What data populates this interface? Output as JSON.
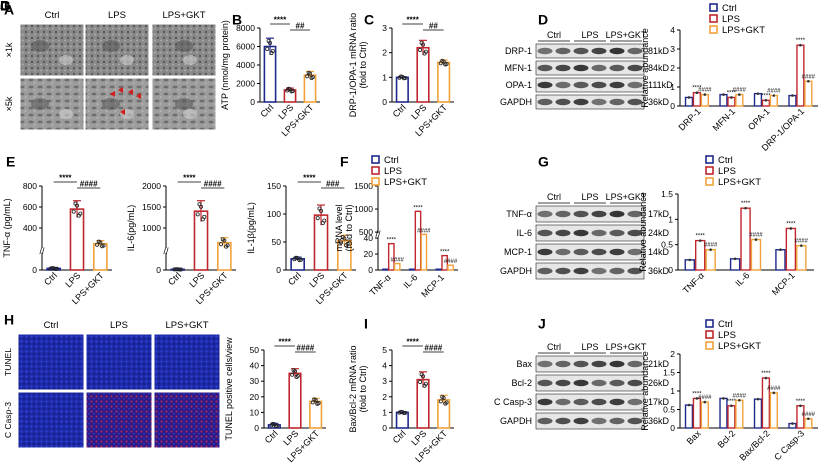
{
  "legend_labels": [
    "Ctrl",
    "LPS",
    "LPS+GKT"
  ],
  "colors": {
    "ctrl": "#1f2a8c",
    "lps": "#c0272d",
    "gkt": "#f2a23a"
  },
  "panels": {
    "A": {
      "letter": "A",
      "col_labels": [
        "Ctrl",
        "LPS",
        "LPS+GKT"
      ],
      "row_labels": [
        "×1k",
        "×5k"
      ]
    },
    "H": {
      "letter": "H",
      "col_labels": [
        "Ctrl",
        "LPS",
        "LPS+GKT"
      ],
      "row_labels": [
        "TUNEL",
        "C Casp-3"
      ]
    },
    "blots": [
      {
        "id": "blot-D",
        "letter": "D",
        "col_labels": [
          "Ctrl",
          "LPS",
          "LPS+GKT"
        ],
        "bands": [
          {
            "name": "DRP-1",
            "kd": "81kD"
          },
          {
            "name": "MFN-1",
            "kd": "84kD"
          },
          {
            "name": "OPA-1",
            "kd": "111kD"
          },
          {
            "name": "GAPDH",
            "kd": "36kD"
          }
        ]
      },
      {
        "id": "blot-G",
        "letter": "G",
        "col_labels": [
          "Ctrl",
          "LPS",
          "LPS+GKT"
        ],
        "bands": [
          {
            "name": "TNF-α",
            "kd": "17kD"
          },
          {
            "name": "IL-6",
            "kd": "24kD"
          },
          {
            "name": "MCP-1",
            "kd": "14kD"
          },
          {
            "name": "GAPDH",
            "kd": "36kD"
          }
        ]
      },
      {
        "id": "blot-J",
        "letter": "J",
        "col_labels": [
          "Ctrl",
          "LPS",
          "LPS+GKT"
        ],
        "bands": [
          {
            "name": "Bax",
            "kd": "21kD"
          },
          {
            "name": "Bcl-2",
            "kd": "26kD"
          },
          {
            "name": "C Casp-3",
            "kd": "17kD"
          },
          {
            "name": "GAPDH",
            "kd": "36kD"
          }
        ]
      }
    ]
  },
  "chart_data": [
    {
      "id": "B",
      "letter": "B",
      "type": "bar",
      "categories": [
        "Ctrl",
        "LPS",
        "LPS+GKT"
      ],
      "values": [
        6000,
        1300,
        2900
      ],
      "errors": [
        900,
        200,
        400
      ],
      "ylabel": "ATP (nmol/mg protein)",
      "ylim": [
        0,
        8000
      ],
      "yticks": [
        0,
        2000,
        4000,
        6000,
        8000
      ],
      "sig": [
        {
          "text": "****",
          "from": 0,
          "to": 1
        },
        {
          "text": "##",
          "from": 1,
          "to": 2
        }
      ]
    },
    {
      "id": "C",
      "letter": "C",
      "type": "bar",
      "categories": [
        "Ctrl",
        "LPS",
        "LPS+GKT"
      ],
      "values": [
        1.0,
        2.2,
        1.6
      ],
      "errors": [
        0,
        0.3,
        0.1
      ],
      "ylabel": "DRP-1/OPA-1 mRNA ratio",
      "ylabel2": "(fold to Ctrl)",
      "ylim": [
        0,
        3
      ],
      "yticks": [
        0,
        1,
        2,
        3
      ],
      "sig": [
        {
          "text": "****",
          "from": 0,
          "to": 1
        },
        {
          "text": "##",
          "from": 1,
          "to": 2
        }
      ]
    },
    {
      "id": "D",
      "letter": "D",
      "type": "bar",
      "categories": [
        "DRP-1",
        "MFN-1",
        "OPA-1",
        "DRP-1/OPA-1"
      ],
      "series": [
        {
          "name": "Ctrl",
          "values": [
            0.45,
            0.6,
            0.65,
            0.55
          ]
        },
        {
          "name": "LPS",
          "values": [
            0.7,
            0.45,
            0.3,
            3.2
          ]
        },
        {
          "name": "LPS+GKT",
          "values": [
            0.6,
            0.6,
            0.55,
            1.3
          ]
        }
      ],
      "ylabel": "Relative abundance",
      "ylim": [
        0,
        4
      ],
      "yticks": [
        0,
        1,
        2,
        3,
        4
      ],
      "legend": "top-right",
      "stars": [
        [
          "",
          "****",
          "####"
        ],
        [
          "",
          "****",
          "####"
        ],
        [
          "",
          "****",
          "####"
        ],
        [
          "",
          "****",
          "####"
        ]
      ]
    },
    {
      "id": "E1",
      "letter": "E",
      "type": "bar",
      "categories": [
        "Ctrl",
        "LPS",
        "LPS+GKT"
      ],
      "values": [
        15,
        580,
        250
      ],
      "errors": [
        5,
        80,
        30
      ],
      "ylabel": "TNF-α (pg/mL)",
      "ylim": [
        0,
        800
      ],
      "yticks": [
        0,
        200,
        400,
        600,
        800
      ],
      "tick_labels": [
        "",
        "",
        "400",
        "600",
        "800"
      ],
      "broken_axis": true,
      "sig": [
        {
          "text": "****",
          "from": 0,
          "to": 1
        },
        {
          "text": "####",
          "from": 1,
          "to": 2
        }
      ]
    },
    {
      "id": "E2",
      "letter": "",
      "type": "bar",
      "categories": [
        "Ctrl",
        "LPS",
        "LPS+GKT"
      ],
      "values": [
        15,
        1400,
        650
      ],
      "errors": [
        5,
        250,
        120
      ],
      "ylabel": "IL-6(pg/mL)",
      "ylim": [
        0,
        2000
      ],
      "yticks": [
        0,
        500,
        1000,
        1500,
        2000
      ],
      "tick_labels": [
        "",
        "",
        "1000",
        "1500",
        "2000"
      ],
      "broken_axis": true,
      "sig": [
        {
          "text": "****",
          "from": 0,
          "to": 1
        },
        {
          "text": "####",
          "from": 1,
          "to": 2
        }
      ]
    },
    {
      "id": "E3",
      "letter": "",
      "type": "bar",
      "categories": [
        "Ctrl",
        "LPS",
        "LPS+GKT"
      ],
      "values": [
        20,
        98,
        52
      ],
      "errors": [
        3,
        18,
        10
      ],
      "ylabel": "IL-1β(pg/mL)",
      "ylim": [
        0,
        150
      ],
      "yticks": [
        0,
        50,
        100,
        150
      ],
      "sig": [
        {
          "text": "****",
          "from": 0,
          "to": 1
        },
        {
          "text": "###",
          "from": 1,
          "to": 2
        }
      ]
    },
    {
      "id": "F",
      "letter": "F",
      "type": "bar",
      "categories": [
        "TNF-α",
        "IL-6",
        "MCP-1"
      ],
      "series": [
        {
          "name": "Ctrl",
          "values": [
            1,
            1,
            1
          ]
        },
        {
          "name": "LPS",
          "values": [
            33,
            950,
            18
          ]
        },
        {
          "name": "LPS+GKT",
          "values": [
            8,
            450,
            6
          ]
        }
      ],
      "ylabel": "mRNA level",
      "ylabel2": "(fold to Ctrl)",
      "ylim": [
        0,
        1500
      ],
      "yticks": [
        0,
        20,
        40,
        500,
        1000,
        1500
      ],
      "broken_axis": true,
      "legend": "top-left",
      "stars": [
        [
          "",
          "****",
          "####"
        ],
        [
          "",
          "****",
          "####"
        ],
        [
          "",
          "****",
          "####"
        ]
      ]
    },
    {
      "id": "G",
      "letter": "G",
      "type": "bar",
      "categories": [
        "TNF-α",
        "IL-6",
        "MCP-1"
      ],
      "series": [
        {
          "name": "Ctrl",
          "values": [
            0.2,
            0.22,
            0.4
          ]
        },
        {
          "name": "LPS",
          "values": [
            0.58,
            1.22,
            0.82
          ]
        },
        {
          "name": "LPS+GKT",
          "values": [
            0.4,
            0.6,
            0.48
          ]
        }
      ],
      "ylabel": "Relative abundance",
      "ylim": [
        0,
        1.5
      ],
      "yticks": [
        0,
        0.5,
        1.0,
        1.5
      ],
      "legend": "top-left",
      "stars": [
        [
          "",
          "****",
          "####"
        ],
        [
          "",
          "****",
          "####"
        ],
        [
          "",
          "****",
          "####"
        ]
      ]
    },
    {
      "id": "H",
      "letter": "",
      "type": "bar",
      "categories": [
        "Ctrl",
        "LPS",
        "LPS+GKT"
      ],
      "values": [
        2,
        35,
        17
      ],
      "errors": [
        1,
        3,
        2
      ],
      "ylabel": "TUNEL positive cells/view",
      "ylim": [
        0,
        50
      ],
      "yticks": [
        0,
        10,
        20,
        30,
        40,
        50
      ],
      "sig": [
        {
          "text": "****",
          "from": 0,
          "to": 1
        },
        {
          "text": "####",
          "from": 1,
          "to": 2
        }
      ]
    },
    {
      "id": "I",
      "letter": "I",
      "type": "bar",
      "categories": [
        "Ctrl",
        "LPS",
        "LPS+GKT"
      ],
      "values": [
        1.0,
        3.1,
        1.8
      ],
      "errors": [
        0,
        0.5,
        0.3
      ],
      "ylabel": "Bax/Bcl-2 mRNA ratio",
      "ylabel2": "(fold to Ctrl)",
      "ylim": [
        0,
        5
      ],
      "yticks": [
        0,
        1,
        2,
        3,
        4,
        5
      ],
      "sig": [
        {
          "text": "****",
          "from": 0,
          "to": 1
        },
        {
          "text": "####",
          "from": 1,
          "to": 2
        }
      ]
    },
    {
      "id": "J",
      "letter": "J",
      "type": "bar",
      "categories": [
        "Bax",
        "Bcl-2",
        "Bax/Bcl-2",
        "C Casp-3"
      ],
      "series": [
        {
          "name": "Ctrl",
          "values": [
            0.62,
            0.8,
            0.78,
            0.12
          ]
        },
        {
          "name": "LPS",
          "values": [
            0.8,
            0.6,
            1.35,
            0.6
          ]
        },
        {
          "name": "LPS+GKT",
          "values": [
            0.7,
            0.75,
            0.95,
            0.25
          ]
        }
      ],
      "ylabel": "Relative abundance",
      "ylim": [
        0,
        2
      ],
      "yticks": [
        0,
        0.5,
        1.0,
        1.5,
        2.0
      ],
      "legend": "top-left",
      "stars": [
        [
          "",
          "****",
          "####"
        ],
        [
          "",
          "****",
          "####"
        ],
        [
          "",
          "****",
          "####"
        ],
        [
          "",
          "****",
          "####"
        ]
      ]
    }
  ]
}
